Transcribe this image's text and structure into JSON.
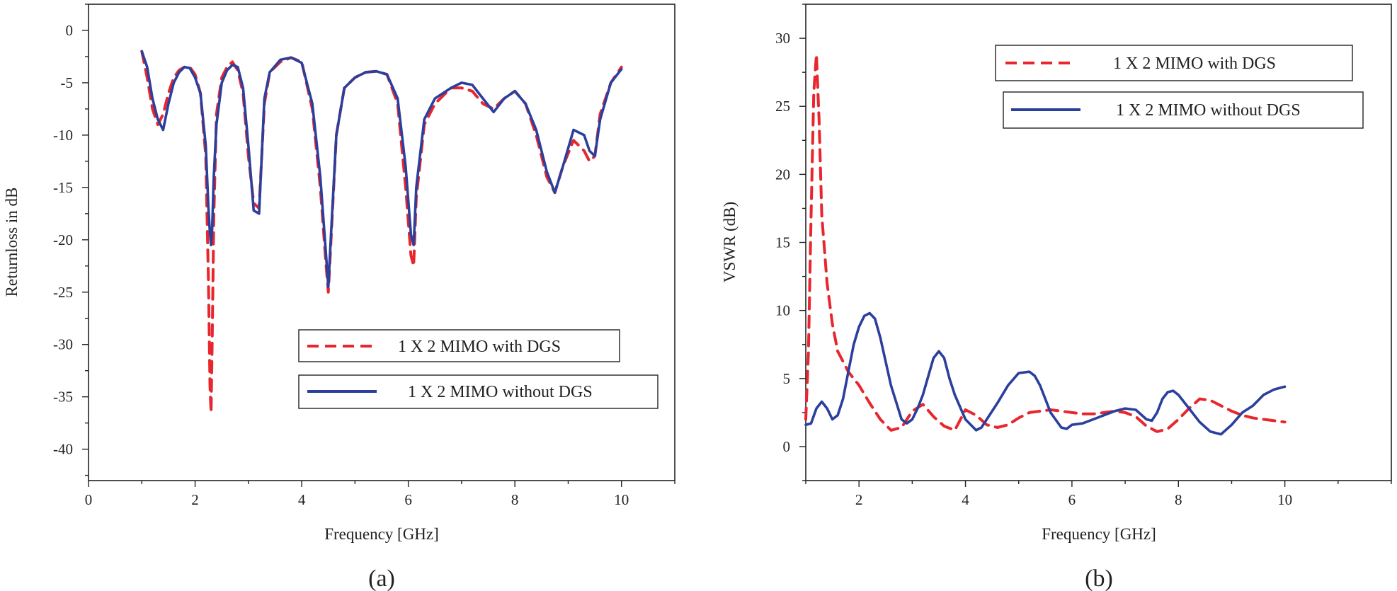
{
  "chart_data": [
    {
      "id": "a",
      "type": "line",
      "caption": "(a)",
      "xlabel": "Frequency [GHz]",
      "ylabel": "Returnloss in dB",
      "xlim": [
        0,
        11
      ],
      "ylim": [
        -43,
        2.5
      ],
      "xticks": [
        0,
        2,
        4,
        6,
        8,
        10
      ],
      "xtick_labels": [
        "0",
        "2",
        "4",
        "6",
        "8",
        "10"
      ],
      "yticks": [
        0,
        -5,
        -10,
        -15,
        -20,
        -25,
        -30,
        -35,
        -40
      ],
      "ytick_labels": [
        "0",
        "-5",
        "-10",
        "-15",
        "-20",
        "-25",
        "-30",
        "-35",
        "-40"
      ],
      "legend_position": "lower-right",
      "series": [
        {
          "name": "1 X 2 MIMO with DGS",
          "color": "#e8262d",
          "style": "dashed",
          "x": [
            1.0,
            1.1,
            1.2,
            1.3,
            1.4,
            1.5,
            1.6,
            1.7,
            1.8,
            1.9,
            2.0,
            2.1,
            2.2,
            2.25,
            2.28,
            2.3,
            2.32,
            2.35,
            2.4,
            2.5,
            2.6,
            2.7,
            2.8,
            2.9,
            3.0,
            3.1,
            3.2,
            3.3,
            3.4,
            3.6,
            3.8,
            4.0,
            4.2,
            4.35,
            4.45,
            4.5,
            4.55,
            4.65,
            4.8,
            5.0,
            5.2,
            5.4,
            5.6,
            5.8,
            5.95,
            6.05,
            6.1,
            6.15,
            6.3,
            6.5,
            6.8,
            7.0,
            7.2,
            7.4,
            7.6,
            7.8,
            8.0,
            8.2,
            8.4,
            8.6,
            8.75,
            8.9,
            9.1,
            9.3,
            9.4,
            9.5,
            9.6,
            9.8,
            10.0
          ],
          "y": [
            -2.0,
            -4.5,
            -7.5,
            -9.0,
            -8.0,
            -6.0,
            -4.5,
            -3.8,
            -3.5,
            -3.5,
            -4.2,
            -6.0,
            -12.0,
            -24.0,
            -34.0,
            -36.5,
            -30.0,
            -18.0,
            -8.0,
            -4.5,
            -3.5,
            -3.0,
            -3.8,
            -6.0,
            -12.0,
            -16.5,
            -17.0,
            -7.0,
            -4.0,
            -3.0,
            -2.6,
            -3.0,
            -7.5,
            -15.0,
            -22.0,
            -25.0,
            -20.0,
            -10.0,
            -5.5,
            -4.5,
            -4.0,
            -3.9,
            -4.2,
            -7.0,
            -15.0,
            -21.5,
            -22.5,
            -16.0,
            -9.0,
            -7.0,
            -5.5,
            -5.5,
            -5.8,
            -7.0,
            -7.5,
            -6.5,
            -5.8,
            -7.0,
            -10.0,
            -14.0,
            -15.5,
            -13.0,
            -10.5,
            -11.5,
            -12.5,
            -12.0,
            -8.0,
            -5.0,
            -3.5
          ]
        },
        {
          "name": "1 X 2 MIMO without DGS",
          "color": "#2b3f9c",
          "style": "solid",
          "x": [
            1.0,
            1.1,
            1.2,
            1.3,
            1.4,
            1.5,
            1.6,
            1.7,
            1.8,
            1.9,
            2.0,
            2.1,
            2.2,
            2.25,
            2.28,
            2.3,
            2.32,
            2.35,
            2.4,
            2.5,
            2.6,
            2.7,
            2.8,
            2.9,
            3.0,
            3.1,
            3.2,
            3.3,
            3.4,
            3.6,
            3.8,
            4.0,
            4.2,
            4.35,
            4.45,
            4.5,
            4.55,
            4.65,
            4.8,
            5.0,
            5.2,
            5.4,
            5.6,
            5.8,
            5.95,
            6.05,
            6.1,
            6.15,
            6.3,
            6.5,
            6.8,
            7.0,
            7.2,
            7.4,
            7.6,
            7.8,
            8.0,
            8.2,
            8.4,
            8.6,
            8.75,
            8.9,
            9.1,
            9.3,
            9.4,
            9.5,
            9.6,
            9.8,
            10.0
          ],
          "y": [
            -2.0,
            -3.5,
            -6.5,
            -8.5,
            -9.5,
            -7.0,
            -5.0,
            -4.0,
            -3.5,
            -3.6,
            -4.5,
            -6.0,
            -11.0,
            -17.0,
            -19.5,
            -20.5,
            -19.0,
            -14.0,
            -9.0,
            -5.0,
            -3.8,
            -3.3,
            -3.5,
            -5.5,
            -11.0,
            -17.2,
            -17.5,
            -6.5,
            -4.0,
            -2.8,
            -2.6,
            -3.1,
            -7.0,
            -14.0,
            -21.0,
            -24.5,
            -19.5,
            -10.0,
            -5.5,
            -4.5,
            -4.0,
            -3.9,
            -4.2,
            -6.5,
            -13.0,
            -19.5,
            -20.5,
            -15.0,
            -8.5,
            -6.5,
            -5.5,
            -5.0,
            -5.2,
            -6.5,
            -7.8,
            -6.5,
            -5.8,
            -7.0,
            -9.5,
            -13.5,
            -15.5,
            -13.0,
            -9.5,
            -10.0,
            -11.5,
            -12.0,
            -8.5,
            -5.0,
            -3.7
          ]
        }
      ]
    },
    {
      "id": "b",
      "type": "line",
      "caption": "(b)",
      "xlabel": "Frequency [GHz]",
      "ylabel": "VSWR (dB)",
      "xlim": [
        1,
        12
      ],
      "ylim": [
        -2.5,
        32.5
      ],
      "xticks": [
        2,
        4,
        6,
        8,
        10
      ],
      "xtick_labels": [
        "2",
        "4",
        "6",
        "8",
        "10"
      ],
      "yticks": [
        0,
        5,
        10,
        15,
        20,
        25,
        30
      ],
      "ytick_labels": [
        "0",
        "5",
        "10",
        "15",
        "20",
        "25",
        "30"
      ],
      "legend_position": "top-right",
      "series": [
        {
          "name": "1 X 2 MIMO with DGS",
          "color": "#e8262d",
          "style": "dashed",
          "x": [
            1.0,
            1.05,
            1.1,
            1.15,
            1.2,
            1.25,
            1.3,
            1.4,
            1.5,
            1.6,
            1.8,
            2.0,
            2.2,
            2.4,
            2.6,
            2.8,
            3.0,
            3.2,
            3.4,
            3.6,
            3.8,
            4.0,
            4.2,
            4.4,
            4.6,
            4.8,
            5.0,
            5.2,
            5.4,
            5.6,
            5.8,
            6.0,
            6.2,
            6.4,
            6.6,
            6.8,
            7.0,
            7.2,
            7.4,
            7.6,
            7.8,
            8.0,
            8.2,
            8.4,
            8.6,
            8.8,
            9.0,
            9.2,
            9.4,
            9.6,
            9.8,
            10.0
          ],
          "y": [
            2.0,
            7.0,
            17.0,
            26.0,
            28.8,
            24.0,
            17.0,
            12.0,
            9.0,
            7.0,
            5.5,
            4.5,
            3.2,
            2.0,
            1.2,
            1.4,
            2.6,
            3.1,
            2.2,
            1.5,
            1.2,
            2.7,
            2.3,
            1.6,
            1.4,
            1.6,
            2.1,
            2.5,
            2.6,
            2.7,
            2.6,
            2.5,
            2.4,
            2.4,
            2.5,
            2.6,
            2.5,
            2.2,
            1.5,
            1.1,
            1.3,
            2.0,
            2.8,
            3.5,
            3.4,
            3.0,
            2.6,
            2.3,
            2.1,
            2.0,
            1.9,
            1.8
          ]
        },
        {
          "name": "1 X 2 MIMO without DGS",
          "color": "#2b3f9c",
          "style": "solid",
          "x": [
            1.0,
            1.1,
            1.2,
            1.3,
            1.4,
            1.5,
            1.6,
            1.7,
            1.8,
            1.9,
            2.0,
            2.1,
            2.2,
            2.3,
            2.4,
            2.6,
            2.8,
            2.9,
            3.0,
            3.1,
            3.2,
            3.4,
            3.5,
            3.6,
            3.7,
            3.8,
            4.0,
            4.2,
            4.3,
            4.4,
            4.6,
            4.8,
            5.0,
            5.2,
            5.3,
            5.4,
            5.6,
            5.8,
            5.9,
            6.0,
            6.2,
            6.4,
            6.6,
            6.8,
            7.0,
            7.2,
            7.4,
            7.5,
            7.6,
            7.7,
            7.8,
            7.9,
            8.0,
            8.2,
            8.4,
            8.6,
            8.8,
            9.0,
            9.2,
            9.4,
            9.6,
            9.8,
            10.0
          ],
          "y": [
            1.6,
            1.7,
            2.8,
            3.3,
            2.8,
            2.0,
            2.3,
            3.5,
            5.5,
            7.5,
            8.8,
            9.6,
            9.8,
            9.4,
            8.0,
            4.5,
            2.0,
            1.7,
            2.0,
            2.8,
            3.8,
            6.5,
            7.0,
            6.5,
            5.0,
            3.8,
            2.0,
            1.2,
            1.4,
            2.0,
            3.2,
            4.5,
            5.4,
            5.5,
            5.2,
            4.5,
            2.5,
            1.4,
            1.3,
            1.6,
            1.7,
            2.0,
            2.3,
            2.6,
            2.8,
            2.7,
            2.0,
            1.9,
            2.5,
            3.5,
            4.0,
            4.1,
            3.8,
            2.8,
            1.8,
            1.1,
            0.9,
            1.6,
            2.5,
            3.0,
            3.8,
            4.2,
            4.4
          ]
        }
      ]
    }
  ]
}
